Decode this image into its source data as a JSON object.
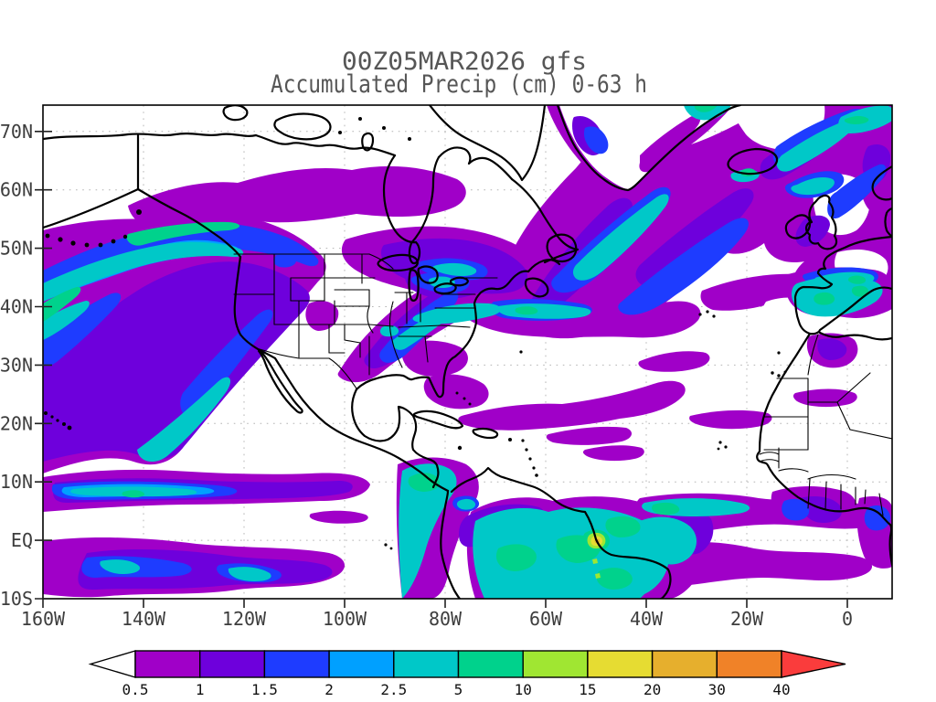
{
  "title": {
    "line1": "00Z05MAR2026 gfs",
    "line2": "Accumulated Precip (cm) 0-63 h"
  },
  "axes": {
    "lat_labels": [
      "70N",
      "60N",
      "50N",
      "40N",
      "30N",
      "20N",
      "10N",
      "EQ",
      "10S"
    ],
    "lon_labels": [
      "160W",
      "140W",
      "120W",
      "100W",
      "80W",
      "60W",
      "40W",
      "20W",
      "0"
    ]
  },
  "colorbar": {
    "boundary_labels": [
      "0.5",
      "1",
      "1.5",
      "2",
      "2.5",
      "5",
      "10",
      "15",
      "20",
      "30",
      "40"
    ],
    "segment_colors": [
      "#a000c8",
      "#6e00dc",
      "#1e3cff",
      "#00a0ff",
      "#00c8c8",
      "#00d28c",
      "#a0e632",
      "#e6dc32",
      "#e6af2d",
      "#f08228"
    ],
    "under_color": "#ffffff",
    "over_color": "#fa3c3c"
  },
  "chart_data": {
    "type": "filled-contour-map",
    "title": "00Z05MAR2026 gfs",
    "subtitle": "Accumulated Precip (cm) 0-63 h",
    "model": "gfs",
    "init_time": "00Z05MAR2026",
    "variable": "Accumulated Precip (cm)",
    "forecast_window_hours": "0-63",
    "extent": {
      "lon_min": -160,
      "lon_max": 10,
      "lat_min": -10,
      "lat_max": 74.5
    },
    "lat_ticks": [
      "70N",
      "60N",
      "50N",
      "40N",
      "30N",
      "20N",
      "10N",
      "EQ",
      "10S"
    ],
    "lon_ticks": [
      "160W",
      "140W",
      "120W",
      "100W",
      "80W",
      "60W",
      "40W",
      "20W",
      "0"
    ],
    "contour_levels_cm": [
      0.5,
      1,
      1.5,
      2,
      2.5,
      5,
      10,
      15,
      20,
      30,
      40
    ],
    "fill_colors": {
      "under_0.5": "#ffffff",
      "0.5-1": "#a000c8",
      "1-1.5": "#6e00dc",
      "1.5-2": "#1e3cff",
      "2-2.5": "#00a0ff",
      "2.5-5": "#00c8c8",
      "5-10": "#00d28c",
      "10-15": "#a0e632",
      "15-20": "#e6dc32",
      "20-30": "#e6af2d",
      "30-40": "#f08228",
      "over_40": "#fa3c3c"
    },
    "gridlines": "dotted gray every 10 deg latitude and 20 deg longitude",
    "features": [
      "Large curved Pacific storm band from ~25N at 160W arcing northeast into the Gulf of Alaska with 2-10 cm core along the Alaska/BC coast",
      "Purple 0.5-1.5 cm patches across western and central Canada south of Hudson Bay",
      "SW-NE band of 1-5 cm precip from Texas through the Midwest and Great Lakes with 2.5-5 cm core in the Ohio Valley extending to the mid-Atlantic coast",
      "Long mid-latitude Atlantic band near 40N with 2.5-5 cm core stretching toward Iberia",
      "Very large NE Atlantic storm complex from Newfoundland past Iceland to Norway with multiple 1.5-5 cm streaks",
      "Precipitation over Spain (2.5-10 cm) and light amounts over Morocco and the UK/Ireland",
      "Pacific ITCZ bands near 5N and 0-8S with 1.5-5 cm cores",
      "Heavy rain over Panama/Colombia and the Amazon basin (2.5-10 cm) with a 15-30 cm maximum near the Amazon mouth around 50W",
      "Tropical Atlantic ITCZ band from Brazil to the Gulf of Guinea, and 1-5 cm cells on the Guinea coast of West Africa"
    ]
  }
}
